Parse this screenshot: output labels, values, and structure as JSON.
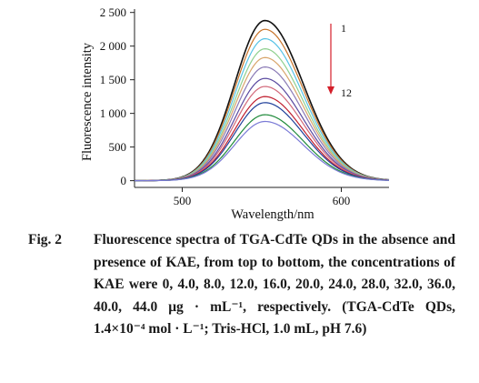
{
  "chart_data": {
    "type": "line",
    "xlabel": "Wavelength/nm",
    "ylabel": "Fluorescence intensity",
    "xlim": [
      470,
      630
    ],
    "ylim": [
      -100,
      2550
    ],
    "xticks": [
      500,
      600
    ],
    "xtick_labels": [
      "500",
      "600"
    ],
    "yticks": [
      0,
      500,
      1000,
      1500,
      2000,
      2500
    ],
    "ytick_labels": [
      "0",
      "500",
      "1 000",
      "1 500",
      "2 000",
      "2 500"
    ],
    "peak_wavelength": 552,
    "series": [
      {
        "peak": 2380,
        "color": "#111111"
      },
      {
        "peak": 2250,
        "color": "#c8742a"
      },
      {
        "peak": 2110,
        "color": "#57c3e6"
      },
      {
        "peak": 1960,
        "color": "#8fd08f"
      },
      {
        "peak": 1830,
        "color": "#d8a56b"
      },
      {
        "peak": 1690,
        "color": "#8a7ab5"
      },
      {
        "peak": 1520,
        "color": "#5a4aa0"
      },
      {
        "peak": 1400,
        "color": "#d2697a"
      },
      {
        "peak": 1250,
        "color": "#c01f2f"
      },
      {
        "peak": 1160,
        "color": "#1f3f9a"
      },
      {
        "peak": 980,
        "color": "#1f8a3a"
      },
      {
        "peak": 880,
        "color": "#7a7ad6"
      }
    ],
    "annotations": {
      "top_label": "1",
      "bottom_label": "12",
      "arrow_color": "#d41f2a"
    }
  },
  "caption": {
    "label": "Fig. 2",
    "text": "Fluorescence spectra of TGA-CdTe QDs in the absence and presence of KAE, from top to bottom, the concentrations of KAE were 0, 4.0, 8.0, 12.0, 16.0, 20.0, 24.0, 28.0, 32.0, 36.0, 40.0, 44.0 μg · mL⁻¹, respectively. (TGA-CdTe QDs, 1.4×10⁻⁴ mol · L⁻¹; Tris-HCl, 1.0 mL, pH 7.6)"
  }
}
